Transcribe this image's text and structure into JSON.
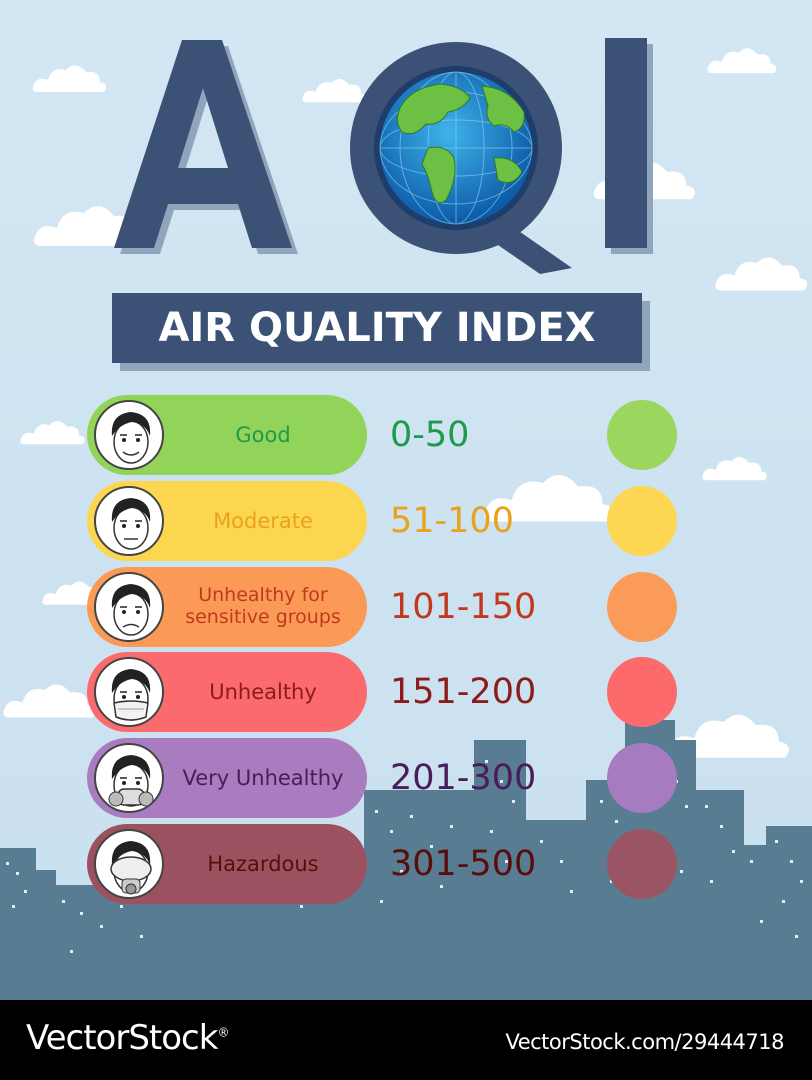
{
  "header": {
    "acronym": "AQI",
    "subtitle": "AIR QUALITY INDEX"
  },
  "levels": [
    {
      "label": "Good",
      "range": "0-50",
      "label_color": "#1f9a4a",
      "range_color": "#1f9a4a",
      "pill_color": "#92d45a",
      "dot_color": "#9bd65e",
      "icon": "face-smiling-icon"
    },
    {
      "label": "Moderate",
      "range": "51-100",
      "label_color": "#e9a21c",
      "range_color": "#e9a21c",
      "pill_color": "#fdd64f",
      "dot_color": "#fdd753",
      "icon": "face-neutral-icon"
    },
    {
      "label": "Unhealthy for sensitive groups",
      "range": "101-150",
      "label_color": "#c0391f",
      "range_color": "#c0391f",
      "pill_color": "#fb9a56",
      "dot_color": "#fb9b5a",
      "icon": "face-unwell-icon"
    },
    {
      "label": "Unhealthy",
      "range": "151-200",
      "label_color": "#8c1c1c",
      "range_color": "#8c1c1c",
      "pill_color": "#fb6a6c",
      "dot_color": "#fc6a6c",
      "icon": "face-mask-icon"
    },
    {
      "label": "Very Unhealthy",
      "range": "201-300",
      "label_color": "#4a1c5a",
      "range_color": "#4a1c5a",
      "pill_color": "#a97bbf",
      "dot_color": "#a67bbf",
      "icon": "face-respirator-icon"
    },
    {
      "label": "Hazardous",
      "range": "301-500",
      "label_color": "#5a0d0d",
      "range_color": "#5a0d0d",
      "pill_color": "#9c5160",
      "dot_color": "#9b5464",
      "icon": "face-gasmask-icon"
    }
  ],
  "footer": {
    "brand": "VectorStock",
    "brand_mark": "®",
    "stock_id": "VectorStock.com/29444718"
  },
  "colors": {
    "title_navy": "#3b5276",
    "sky": "#cfe4f2",
    "city": "#587c92",
    "footer_bg": "#000000"
  }
}
